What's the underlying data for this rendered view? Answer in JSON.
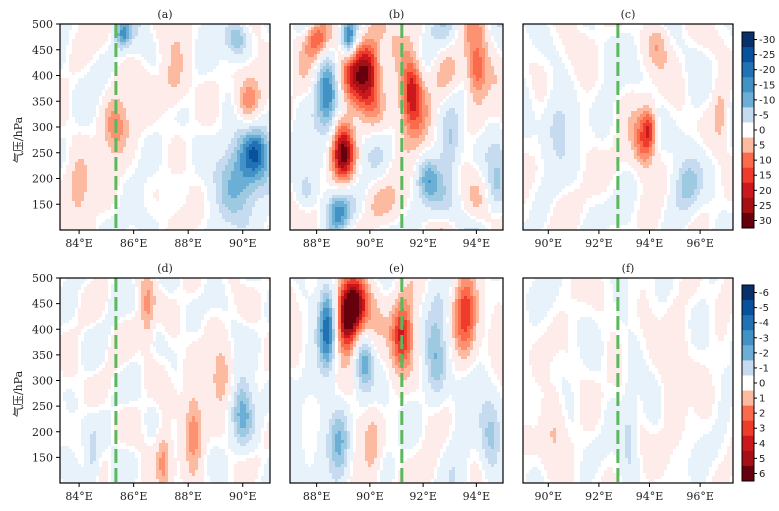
{
  "colors": {
    "negative": [
      "#08306b",
      "#08519c",
      "#2171b5",
      "#4292c6",
      "#6baed6",
      "#9ecae1",
      "#c6dbef",
      "#e8f2fa"
    ],
    "neutral": "#ffffff",
    "positive": [
      "#fdecea",
      "#fcbba1",
      "#fc9272",
      "#fb6a4a",
      "#ef3b2c",
      "#cb181d",
      "#a50f15",
      "#67000d"
    ],
    "track_line": "#5cb85c",
    "frame": "#000000"
  },
  "ylabel": "气压/hPa",
  "chart_data": [
    {
      "type": "heatmap",
      "panel": "(a)",
      "x_ticks": [
        "84°E",
        "86°E",
        "88°E",
        "90°E"
      ],
      "x_tick_values": [
        84,
        86,
        88,
        90
      ],
      "xlim": [
        83.3,
        91.0
      ],
      "y_ticks": [
        150,
        200,
        250,
        300,
        350,
        400,
        450,
        500
      ],
      "ylim": [
        500,
        100
      ],
      "track_x": 85.35,
      "colorbar": 0,
      "amp": 0.7,
      "seed": 11,
      "blobs": [
        [
          85.3,
          300,
          0.35,
          40,
          12
        ],
        [
          90,
          210,
          0.7,
          60,
          -16
        ],
        [
          90.5,
          250,
          0.35,
          30,
          -12
        ],
        [
          89.8,
          470,
          0.3,
          25,
          -13
        ],
        [
          84,
          190,
          0.3,
          40,
          11
        ],
        [
          87.5,
          380,
          0.35,
          40,
          10
        ],
        [
          90.2,
          350,
          0.3,
          35,
          12
        ],
        [
          85.6,
          480,
          0.2,
          20,
          -15
        ]
      ]
    },
    {
      "type": "heatmap",
      "panel": "(b)",
      "x_ticks": [
        "88°E",
        "90°E",
        "92°E",
        "94°E"
      ],
      "x_tick_values": [
        88,
        90,
        92,
        94
      ],
      "xlim": [
        87.0,
        95.0
      ],
      "y_ticks": [
        150,
        200,
        250,
        300,
        350,
        400,
        450,
        500
      ],
      "ylim": [
        500,
        100
      ],
      "track_x": 91.2,
      "colorbar": 0,
      "amp": 1.2,
      "seed": 23,
      "blobs": [
        [
          89.0,
          250,
          0.3,
          45,
          25
        ],
        [
          89.6,
          400,
          0.55,
          50,
          20
        ],
        [
          88.4,
          350,
          0.3,
          60,
          -18
        ],
        [
          90.0,
          430,
          0.3,
          40,
          15
        ],
        [
          91.5,
          340,
          0.4,
          50,
          16
        ],
        [
          91.6,
          380,
          0.25,
          40,
          15
        ],
        [
          94.0,
          410,
          0.3,
          40,
          22
        ],
        [
          93.0,
          250,
          0.3,
          40,
          -12
        ],
        [
          88.8,
          130,
          0.3,
          30,
          -13
        ],
        [
          87.6,
          170,
          0.3,
          30,
          -10
        ],
        [
          92.2,
          200,
          0.3,
          30,
          -12
        ],
        [
          89.2,
          470,
          0.2,
          25,
          -22
        ],
        [
          94.7,
          170,
          0.3,
          40,
          -11
        ],
        [
          88.0,
          470,
          0.3,
          25,
          14
        ]
      ]
    },
    {
      "type": "heatmap",
      "panel": "(c)",
      "x_ticks": [
        "90°E",
        "92°E",
        "94°E",
        "96°E"
      ],
      "x_tick_values": [
        90,
        92,
        94,
        96
      ],
      "xlim": [
        89.0,
        97.3
      ],
      "y_ticks": [
        150,
        200,
        250,
        300,
        350,
        400,
        450,
        500
      ],
      "ylim": [
        500,
        100
      ],
      "track_x": 92.75,
      "colorbar": 0,
      "amp": 0.6,
      "seed": 37,
      "blobs": [
        [
          93.8,
          270,
          0.3,
          40,
          15
        ],
        [
          94.0,
          300,
          0.2,
          30,
          12
        ],
        [
          95.5,
          190,
          0.4,
          40,
          -11
        ],
        [
          94.3,
          460,
          0.3,
          30,
          8
        ],
        [
          90.3,
          310,
          0.4,
          50,
          -7
        ],
        [
          96.8,
          330,
          0.2,
          40,
          7
        ]
      ]
    },
    {
      "type": "heatmap",
      "panel": "(d)",
      "x_ticks": [
        "84°E",
        "86°E",
        "88°E",
        "90°E"
      ],
      "x_tick_values": [
        84,
        86,
        88,
        90
      ],
      "xlim": [
        83.3,
        91.0
      ],
      "y_ticks": [
        150,
        200,
        250,
        300,
        350,
        400,
        450,
        500
      ],
      "ylim": [
        500,
        100
      ],
      "track_x": 85.35,
      "colorbar": 1,
      "amp": 0.6,
      "seed": 41,
      "blobs": [
        [
          90,
          250,
          0.3,
          50,
          -3
        ],
        [
          89.2,
          300,
          0.3,
          40,
          2
        ],
        [
          88.2,
          200,
          0.25,
          80,
          2
        ],
        [
          84.5,
          140,
          0.2,
          40,
          -2
        ],
        [
          87.1,
          150,
          0.2,
          50,
          2
        ],
        [
          86.5,
          430,
          0.2,
          50,
          2
        ]
      ]
    },
    {
      "type": "heatmap",
      "panel": "(e)",
      "x_ticks": [
        "88°E",
        "90°E",
        "92°E",
        "94°E"
      ],
      "x_tick_values": [
        88,
        90,
        92,
        94
      ],
      "xlim": [
        87.0,
        95.0
      ],
      "y_ticks": [
        150,
        200,
        250,
        300,
        350,
        400,
        450,
        500
      ],
      "ylim": [
        500,
        100
      ],
      "track_x": 91.2,
      "colorbar": 1,
      "amp": 1.0,
      "seed": 53,
      "blobs": [
        [
          89.1,
          420,
          0.3,
          50,
          6.5
        ],
        [
          89.5,
          450,
          0.3,
          40,
          5
        ],
        [
          88.4,
          400,
          0.25,
          60,
          -5
        ],
        [
          91.2,
          390,
          0.3,
          50,
          4.5
        ],
        [
          88.9,
          180,
          0.3,
          60,
          -3
        ],
        [
          90.1,
          170,
          0.25,
          60,
          2
        ],
        [
          92.5,
          320,
          0.3,
          60,
          -2.5
        ],
        [
          93.6,
          430,
          0.3,
          60,
          3
        ],
        [
          89.8,
          340,
          0.25,
          40,
          -3
        ],
        [
          94.5,
          180,
          0.3,
          60,
          -2
        ]
      ]
    },
    {
      "type": "heatmap",
      "panel": "(f)",
      "x_ticks": [
        "90°E",
        "92°E",
        "94°E",
        "96°E"
      ],
      "x_tick_values": [
        90,
        92,
        94,
        96
      ],
      "xlim": [
        89.0,
        97.3
      ],
      "y_ticks": [
        150,
        200,
        250,
        300,
        350,
        400,
        450,
        500
      ],
      "ylim": [
        500,
        100
      ],
      "track_x": 92.75,
      "colorbar": 1,
      "amp": 0.5,
      "seed": 67,
      "blobs": [
        [
          93.2,
          200,
          0.2,
          60,
          -1.5
        ],
        [
          95,
          320,
          0.3,
          80,
          1.2
        ],
        [
          90.2,
          200,
          0.3,
          60,
          1.1
        ]
      ]
    }
  ],
  "colorbars": [
    {
      "labels": [
        "-30",
        "-25",
        "-20",
        "-15",
        "-10",
        "-5",
        "0",
        "5",
        "10",
        "15",
        "20",
        "25",
        "30"
      ]
    },
    {
      "labels": [
        "-6",
        "-5",
        "-4",
        "-3",
        "-2",
        "-1",
        "0",
        "1",
        "2",
        "3",
        "4",
        "5",
        "6"
      ]
    }
  ]
}
